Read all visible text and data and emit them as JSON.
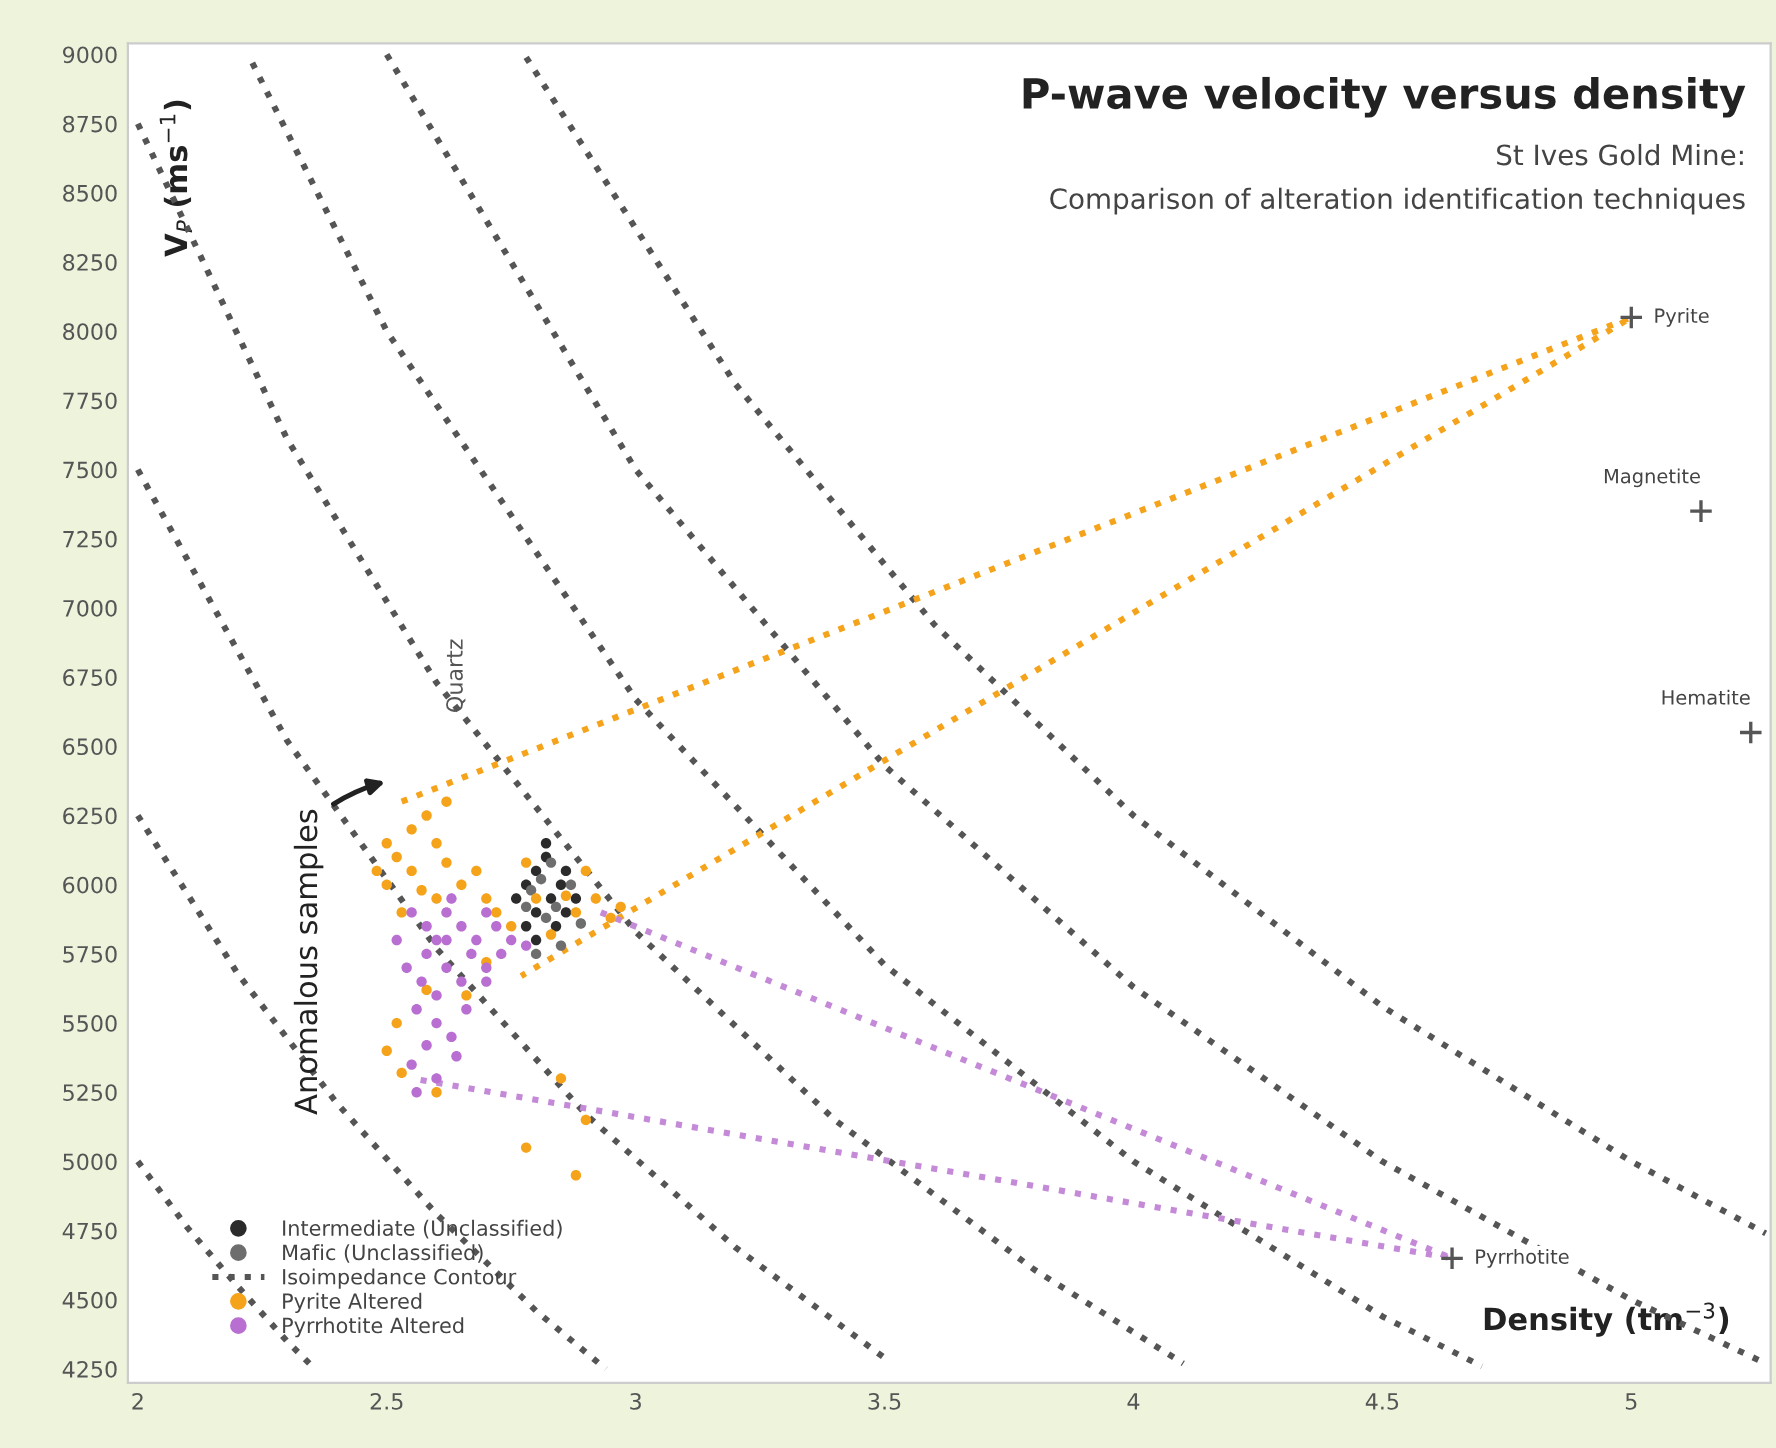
{
  "chart_data": {
    "type": "scatter",
    "title": "P-wave velocity versus density",
    "subtitle": "St Ives Gold Mine:\nComparison of alteration identification techniques",
    "xlabel": "Density (tm$^{−3}$)",
    "ylabel": "V$_{P}$ (ms$^{−1}$)",
    "xlim": [
      1.98,
      5.28
    ],
    "ylim": [
      4200,
      9040
    ],
    "xticks": [
      2,
      2.5,
      3,
      3.5,
      4,
      4.5,
      5
    ],
    "yticks": [
      4250,
      4500,
      4750,
      5000,
      5250,
      5500,
      5750,
      6000,
      6250,
      6500,
      6750,
      7000,
      7250,
      7500,
      7750,
      8000,
      8250,
      8500,
      8750,
      9000
    ],
    "grid": false,
    "legend": "bottom left",
    "series": [
      {
        "name": "Intermediate (Unclassified)",
        "marker": "circle",
        "color": "#2b2b2b",
        "x": [
          2.78,
          2.8,
          2.82,
          2.85,
          2.83,
          2.8,
          2.78,
          2.86,
          2.88,
          2.84,
          2.8,
          2.76,
          2.82,
          2.86
        ],
        "values": [
          6000,
          6050,
          6100,
          6000,
          5950,
          5900,
          5850,
          5900,
          5950,
          5850,
          5800,
          5950,
          6150,
          6050
        ]
      },
      {
        "name": "Mafic (Unclassified)",
        "marker": "circle",
        "color": "#6e6e6e",
        "x": [
          2.79,
          2.81,
          2.84,
          2.87,
          2.82,
          2.78,
          2.85,
          2.8,
          2.83,
          2.89
        ],
        "values": [
          5980,
          6020,
          5920,
          6000,
          5880,
          5920,
          5780,
          5750,
          6080,
          5860
        ]
      },
      {
        "name": "Isoimpedance Contour",
        "type": "line",
        "line_style": "dotted",
        "color": "#555555",
        "x": [
          2,
          2.1,
          2.2,
          2.3,
          2.35
        ],
        "values": [
          5000,
          4760,
          4550,
          4350,
          4260
        ]
      },
      {
        "type": "line",
        "line_style": "dotted",
        "color": "#555555",
        "x": [
          2,
          2.2,
          2.4,
          2.6,
          2.8,
          2.94
        ],
        "values": [
          6250,
          5680,
          5210,
          4810,
          4460,
          4250
        ]
      },
      {
        "type": "line",
        "line_style": "dotted",
        "color": "#555555",
        "x": [
          2,
          2.3,
          2.6,
          2.9,
          3.2,
          3.5
        ],
        "values": [
          7500,
          6520,
          5770,
          5170,
          4690,
          4290
        ]
      },
      {
        "type": "line",
        "line_style": "dotted",
        "color": "#555555",
        "x": [
          2,
          2.3,
          2.6,
          3,
          3.4,
          3.8,
          4.1
        ],
        "values": [
          8750,
          7610,
          6730,
          5830,
          5150,
          4610,
          4270
        ]
      },
      {
        "type": "line",
        "line_style": "dotted",
        "color": "#555555",
        "x": [
          2.23,
          2.5,
          3,
          3.5,
          4,
          4.5,
          4.7
        ],
        "values": [
          8970,
          8000,
          6670,
          5710,
          5000,
          4440,
          4260
        ]
      },
      {
        "type": "line",
        "line_style": "dotted",
        "color": "#555555",
        "x": [
          2.5,
          3,
          3.5,
          4,
          4.5,
          5,
          5.27
        ],
        "values": [
          9000,
          7500,
          6430,
          5630,
          5000,
          4500,
          4270
        ]
      },
      {
        "type": "line",
        "line_style": "dotted",
        "color": "#555555",
        "x": [
          2.78,
          3.2,
          3.6,
          4,
          4.5,
          5,
          5.27
        ],
        "values": [
          8990,
          7810,
          6940,
          6250,
          5560,
          5000,
          4740
        ]
      },
      {
        "name": "Pyrite Altered",
        "marker": "circle",
        "color": "#f5a31a",
        "x": [
          2.5,
          2.52,
          2.55,
          2.58,
          2.6,
          2.55,
          2.5,
          2.62,
          2.65,
          2.6,
          2.68,
          2.7,
          2.53,
          2.57,
          2.48,
          2.72,
          2.75,
          2.8,
          2.86,
          2.88,
          2.92,
          2.95,
          2.9,
          2.83,
          2.97,
          2.78,
          2.52,
          2.53,
          2.6,
          2.85,
          2.9,
          2.88,
          2.78,
          2.66,
          2.7,
          2.58,
          2.62,
          2.5
        ],
        "values": [
          6150,
          6100,
          6200,
          6250,
          6150,
          6050,
          6000,
          6080,
          6000,
          5950,
          6050,
          5950,
          5900,
          5980,
          6050,
          5900,
          5850,
          5950,
          5960,
          5900,
          5950,
          5880,
          6050,
          5820,
          5920,
          6080,
          5500,
          5320,
          5250,
          5300,
          5150,
          4950,
          5050,
          5600,
          5720,
          5620,
          6300,
          5400
        ]
      },
      {
        "name": "Pyrrhotite Altered",
        "marker": "circle",
        "color": "#b86fd1",
        "x": [
          2.55,
          2.58,
          2.6,
          2.62,
          2.65,
          2.68,
          2.7,
          2.72,
          2.75,
          2.58,
          2.62,
          2.65,
          2.6,
          2.56,
          2.6,
          2.58,
          2.55,
          2.6,
          2.63,
          2.66,
          2.7,
          2.67,
          2.52,
          2.54,
          2.57,
          2.63,
          2.7,
          2.73,
          2.64,
          2.56,
          2.78,
          2.62
        ],
        "values": [
          5900,
          5850,
          5800,
          5900,
          5850,
          5800,
          5900,
          5850,
          5800,
          5750,
          5700,
          5650,
          5600,
          5550,
          5500,
          5420,
          5350,
          5300,
          5450,
          5550,
          5700,
          5750,
          5800,
          5700,
          5650,
          5950,
          5650,
          5750,
          5380,
          5250,
          5780,
          5800
        ]
      },
      {
        "type": "line",
        "line_style": "dotted",
        "color": "#f5a31a",
        "x": [
          2.53,
          5.0,
          2.77
        ],
        "values": [
          6300,
          8050,
          5670
        ]
      },
      {
        "type": "line",
        "line_style": "dotted",
        "color": "#c48ad8",
        "x": [
          2.93,
          4.64,
          2.55
        ],
        "values": [
          5900,
          4650,
          5300
        ]
      },
      {
        "marker": "cross",
        "color": "#555555",
        "x": [
          5.0,
          5.14,
          5.24,
          4.64
        ],
        "values": [
          8050,
          7350,
          6550,
          4650
        ]
      }
    ],
    "annotations": [
      {
        "text": "Pyrite",
        "x": 5.0,
        "y": 8050
      },
      {
        "text": "Magnetite",
        "x": 5.14,
        "y": 7350
      },
      {
        "text": "Hematite",
        "x": 5.24,
        "y": 6550
      },
      {
        "text": "Pyrrhotite",
        "x": 4.64,
        "y": 4650
      },
      "Quartz",
      "Anomalous samples"
    ]
  }
}
